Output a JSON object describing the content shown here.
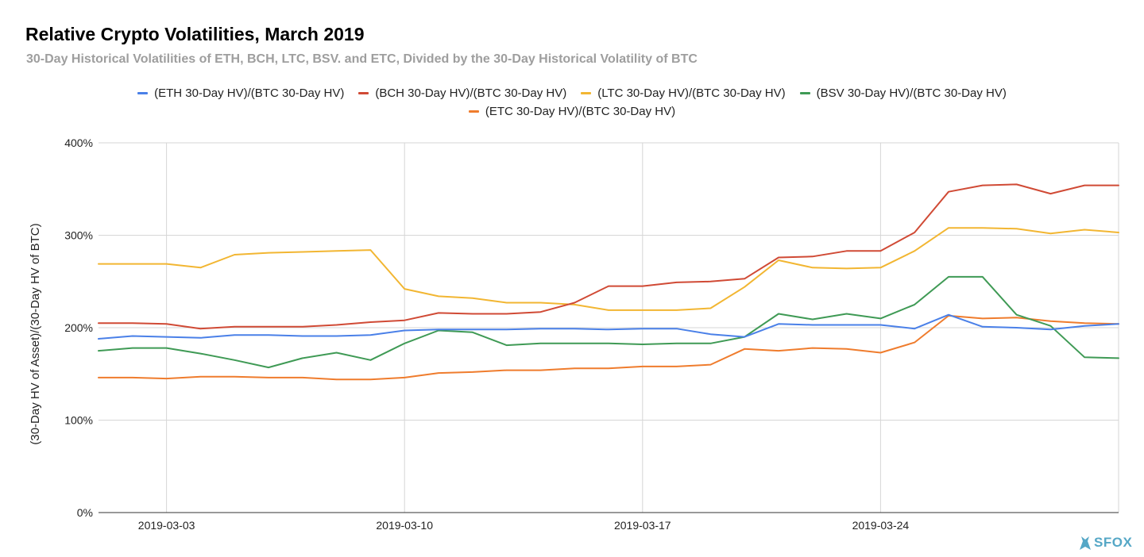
{
  "chart_data": {
    "type": "line",
    "title": "Relative Crypto Volatilities, March 2019",
    "subtitle": "30-Day Historical Volatilities of ETH, BCH, LTC, BSV. and ETC, Divided by the 30-Day Historical Volatility of BTC",
    "xlabel": "",
    "ylabel": "(30-Day HV of Asset)/(30-Day HV of BTC)",
    "ylim": [
      0,
      400
    ],
    "yticks": [
      "0%",
      "100%",
      "200%",
      "300%",
      "400%"
    ],
    "x": [
      "2019-03-01",
      "2019-03-02",
      "2019-03-03",
      "2019-03-04",
      "2019-03-05",
      "2019-03-06",
      "2019-03-07",
      "2019-03-08",
      "2019-03-09",
      "2019-03-10",
      "2019-03-11",
      "2019-03-12",
      "2019-03-13",
      "2019-03-14",
      "2019-03-15",
      "2019-03-16",
      "2019-03-17",
      "2019-03-18",
      "2019-03-19",
      "2019-03-20",
      "2019-03-21",
      "2019-03-22",
      "2019-03-23",
      "2019-03-24",
      "2019-03-25",
      "2019-03-26",
      "2019-03-27",
      "2019-03-28",
      "2019-03-29",
      "2019-03-30",
      "2019-03-31"
    ],
    "xticks": [
      "2019-03-03",
      "2019-03-10",
      "2019-03-17",
      "2019-03-24"
    ],
    "grid": true,
    "legend_position": "top",
    "series": [
      {
        "name": "(ETH 30-Day HV)/(BTC 30-Day HV)",
        "color": "#4a80e8",
        "values": [
          188,
          191,
          190,
          189,
          192,
          192,
          191,
          191,
          192,
          197,
          198,
          198,
          198,
          199,
          199,
          198,
          199,
          199,
          193,
          190,
          204,
          203,
          203,
          203,
          199,
          214,
          201,
          200,
          198,
          202,
          204
        ]
      },
      {
        "name": "(BCH 30-Day HV)/(BTC 30-Day HV)",
        "color": "#d04a35",
        "values": [
          205,
          205,
          204,
          199,
          201,
          201,
          201,
          203,
          206,
          208,
          216,
          215,
          215,
          217,
          227,
          245,
          245,
          249,
          250,
          253,
          276,
          277,
          283,
          283,
          303,
          347,
          354,
          355,
          345,
          354,
          354
        ]
      },
      {
        "name": "(LTC 30-Day HV)/(BTC 30-Day HV)",
        "color": "#f2b632",
        "values": [
          269,
          269,
          269,
          265,
          279,
          281,
          282,
          283,
          284,
          242,
          234,
          232,
          227,
          227,
          225,
          219,
          219,
          219,
          221,
          244,
          273,
          265,
          264,
          265,
          283,
          308,
          308,
          307,
          302,
          306,
          303
        ]
      },
      {
        "name": "(BSV 30-Day HV)/(BTC 30-Day HV)",
        "color": "#3f9a55",
        "values": [
          175,
          178,
          178,
          172,
          165,
          157,
          167,
          173,
          165,
          183,
          197,
          195,
          181,
          183,
          183,
          183,
          182,
          183,
          183,
          190,
          215,
          209,
          215,
          210,
          225,
          255,
          255,
          214,
          202,
          168,
          167
        ]
      },
      {
        "name": "(ETC 30-Day HV)/(BTC 30-Day HV)",
        "color": "#ef7c2d",
        "values": [
          146,
          146,
          145,
          147,
          147,
          146,
          146,
          144,
          144,
          146,
          151,
          152,
          154,
          154,
          156,
          156,
          158,
          158,
          160,
          177,
          175,
          178,
          177,
          173,
          184,
          213,
          210,
          211,
          207,
          205,
          204
        ]
      }
    ]
  },
  "logo": {
    "text": "SFOX",
    "color": "#55a7c6"
  }
}
